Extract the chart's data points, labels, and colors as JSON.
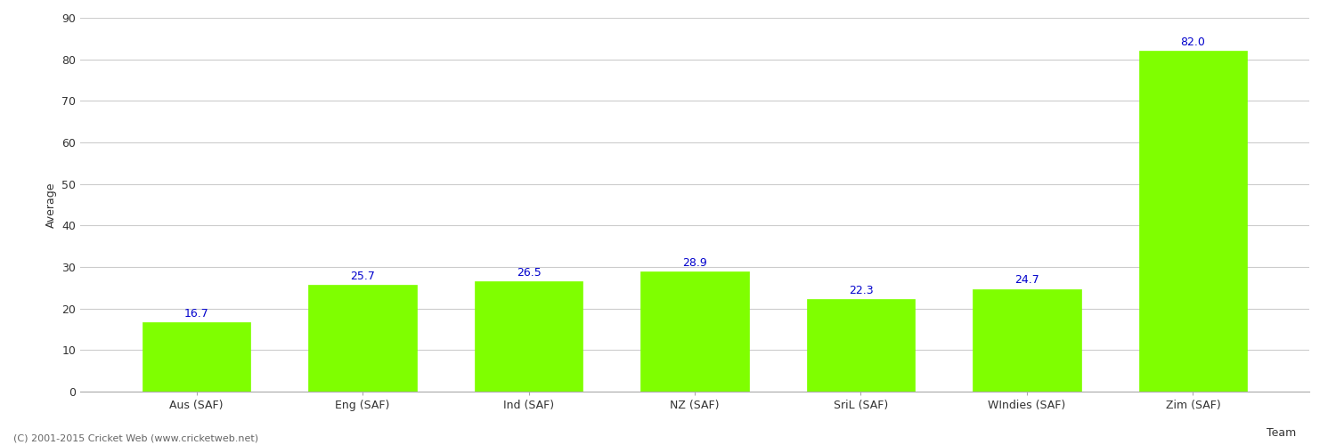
{
  "categories": [
    "Aus (SAF)",
    "Eng (SAF)",
    "Ind (SAF)",
    "NZ (SAF)",
    "SriL (SAF)",
    "WIndies (SAF)",
    "Zim (SAF)"
  ],
  "values": [
    16.7,
    25.7,
    26.5,
    28.9,
    22.3,
    24.7,
    82.0
  ],
  "bar_color": "#7fff00",
  "bar_edge_color": "#7fff00",
  "label_color": "#0000cc",
  "xlabel": "Team",
  "ylabel": "Average",
  "ylim": [
    0,
    90
  ],
  "yticks": [
    0,
    10,
    20,
    30,
    40,
    50,
    60,
    70,
    80,
    90
  ],
  "grid_color": "#cccccc",
  "background_color": "#ffffff",
  "label_fontsize": 9,
  "axis_label_fontsize": 9,
  "tick_fontsize": 9,
  "footer_text": "(C) 2001-2015 Cricket Web (www.cricketweb.net)",
  "footer_fontsize": 8,
  "bar_width": 0.65
}
